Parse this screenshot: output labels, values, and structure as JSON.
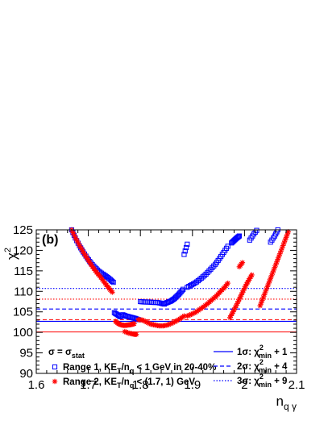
{
  "chart_data": {
    "type": "scatter",
    "panel_label": "(b)",
    "xlabel": "n",
    "xlabel_sub": "q γ",
    "ylabel": "χ",
    "ylabel_sup": "2",
    "xlim": [
      1.6,
      2.1
    ],
    "ylim": [
      90,
      125
    ],
    "xticks": [
      {
        "v": 1.6,
        "label": "1.6"
      },
      {
        "v": 1.7,
        "label": "1.7"
      },
      {
        "v": 1.8,
        "label": "1.8"
      },
      {
        "v": 1.9,
        "label": "1.9"
      },
      {
        "v": 2.0,
        "label": "2"
      },
      {
        "v": 2.1,
        "label": "2.1"
      }
    ],
    "yticks": [
      {
        "v": 90,
        "label": "90"
      },
      {
        "v": 95,
        "label": "95"
      },
      {
        "v": 100,
        "label": "100"
      },
      {
        "v": 105,
        "label": "105"
      },
      {
        "v": 110,
        "label": "110"
      },
      {
        "v": 115,
        "label": "115"
      },
      {
        "v": 120,
        "label": "120"
      },
      {
        "v": 125,
        "label": "125"
      }
    ],
    "grid": false,
    "legend_placement": "bottom",
    "legend_header": "σ = σ",
    "legend_header_sub": "stat",
    "series": [
      {
        "name": "Range 1, KE_T/n_q < 1 GeV in 20-40%",
        "marker": "open-square",
        "color": "#0000ff",
        "branches": [
          {
            "x": [
              1.668,
              1.675,
              1.683,
              1.69,
              1.698,
              1.705,
              1.713,
              1.72,
              1.728,
              1.735,
              1.742,
              1.748
            ],
            "y": [
              125.0,
              123.0,
              121.1,
              119.6,
              118.1,
              116.9,
              115.8,
              114.9,
              114.2,
              113.6,
              112.9,
              112.2
            ]
          },
          {
            "x": [
              1.75,
              1.756,
              1.762
            ],
            "y": [
              104.8,
              104.3,
              103.8
            ]
          },
          {
            "x": [
              1.766,
              1.772,
              1.778,
              1.784,
              1.79,
              1.796
            ],
            "y": [
              104.3,
              104.0,
              103.8,
              103.6,
              103.4,
              103.1
            ]
          },
          {
            "x": [
              1.8,
              1.808,
              1.816,
              1.824,
              1.832,
              1.84,
              1.846
            ],
            "y": [
              107.5,
              107.4,
              107.4,
              107.3,
              107.3,
              107.1,
              106.9
            ]
          },
          {
            "x": [
              1.846,
              1.852,
              1.858,
              1.864,
              1.87,
              1.876,
              1.882
            ],
            "y": [
              107.0,
              107.3,
              107.6,
              108.1,
              108.8,
              109.6,
              110.5
            ]
          },
          {
            "x": [
              1.884,
              1.89
            ],
            "y": [
              119.0,
              121.5
            ]
          },
          {
            "x": [
              1.89,
              1.899,
              1.908,
              1.917,
              1.926,
              1.935,
              1.944,
              1.952,
              1.96,
              1.968
            ],
            "y": [
              111.0,
              111.6,
              112.3,
              113.2,
              114.2,
              115.4,
              116.6,
              118.0,
              119.5,
              121.0
            ]
          },
          {
            "x": [
              1.975,
              1.98,
              1.985,
              1.99
            ],
            "y": [
              121.8,
              122.4,
              123.0,
              123.5
            ]
          },
          {
            "x": [
              2.01,
              2.018,
              2.026
            ],
            "y": [
              122.5,
              124.0,
              125.3
            ]
          },
          {
            "x": [
              2.05,
              2.058,
              2.064
            ],
            "y": [
              122.0,
              123.5,
              125.0
            ]
          }
        ]
      },
      {
        "name": "Range 2, KE_T/n_q < (1.7, 1) GeV",
        "marker": "star",
        "color": "#ff0000",
        "branches": [
          {
            "x": [
              1.668,
              1.676,
              1.684,
              1.692,
              1.7,
              1.708,
              1.716,
              1.724,
              1.732,
              1.74,
              1.746
            ],
            "y": [
              125.0,
              122.9,
              121.0,
              119.2,
              117.6,
              116.0,
              114.6,
              113.4,
              112.0,
              110.7,
              109.8
            ]
          },
          {
            "x": [
              1.752,
              1.758,
              1.764,
              1.77,
              1.776,
              1.782,
              1.788
            ],
            "y": [
              102.7,
              102.1,
              101.8,
              101.7,
              101.8,
              101.9,
              102.1
            ]
          },
          {
            "x": [
              1.77,
              1.778,
              1.786,
              1.792
            ],
            "y": [
              100.2,
              99.8,
              99.6,
              99.5
            ]
          },
          {
            "x": [
              1.796,
              1.804,
              1.812,
              1.82,
              1.828,
              1.836,
              1.844,
              1.852,
              1.86,
              1.868,
              1.876,
              1.884
            ],
            "y": [
              103.1,
              103.0,
              102.5,
              102.0,
              101.8,
              101.6,
              101.6,
              101.8,
              102.2,
              102.7,
              103.3,
              104.0
            ]
          },
          {
            "x": [
              1.89,
              1.898,
              1.906,
              1.914,
              1.922,
              1.93,
              1.938,
              1.946,
              1.954,
              1.962,
              1.968
            ],
            "y": [
              104.0,
              104.4,
              104.9,
              105.6,
              106.3,
              107.1,
              108.0,
              108.9,
              110.0,
              111.0,
              112.0
            ]
          },
          {
            "x": [
              1.972,
              1.978,
              1.984,
              1.99,
              1.996,
              2.002,
              2.008,
              2.014
            ],
            "y": [
              103.6,
              105.0,
              106.5,
              108.1,
              109.7,
              111.3,
              112.7,
              114.0
            ]
          },
          {
            "x": [
              1.99,
              1.996
            ],
            "y": [
              116.0,
              117.0
            ]
          },
          {
            "x": [
              2.03,
              2.036,
              2.042,
              2.048,
              2.054,
              2.06,
              2.066,
              2.072,
              2.078,
              2.084
            ],
            "y": [
              106.5,
              108.5,
              110.5,
              112.5,
              114.5,
              116.5,
              118.5,
              120.5,
              122.5,
              124.5
            ]
          }
        ]
      }
    ],
    "reference_lines": [
      {
        "name": "1σ: χ²min + 1",
        "label_main": "1σ: χ",
        "label_sup": "2",
        "label_sub": "min",
        "label_tail": " + 1",
        "style": "solid",
        "color": "#0000ff",
        "y": 102.7,
        "in_legend": true
      },
      {
        "name": "2σ: χ²min + 4",
        "label_main": "2σ: χ",
        "label_sup": "2",
        "label_sub": "min",
        "label_tail": " + 4",
        "style": "dashed",
        "color": "#0000ff",
        "y": 105.7,
        "in_legend": true
      },
      {
        "name": "3σ: χ²min + 9",
        "label_main": "3σ: χ",
        "label_sup": "2",
        "label_sub": "min",
        "label_tail": " + 9",
        "style": "dotted",
        "color": "#0000ff",
        "y": 110.7,
        "in_legend": true
      },
      {
        "style": "solid",
        "color": "#ff0000",
        "y": 100.1,
        "in_legend": false
      },
      {
        "style": "dashed",
        "color": "#ff0000",
        "y": 103.1,
        "in_legend": false
      },
      {
        "style": "dotted",
        "color": "#ff0000",
        "y": 108.1,
        "in_legend": false
      }
    ],
    "legend_entries": [
      {
        "marker": "open-square",
        "color": "#0000ff",
        "text": "Range 1, KE",
        "sub1": "T",
        "mid": "/n",
        "sub2": "q",
        "tail": " < 1 GeV in 20-40%"
      },
      {
        "marker": "star",
        "color": "#ff0000",
        "text": "Range 2, KE",
        "sub1": "T",
        "mid": "/n",
        "sub2": "q",
        "tail": " < (1.7, 1) GeV"
      }
    ]
  }
}
